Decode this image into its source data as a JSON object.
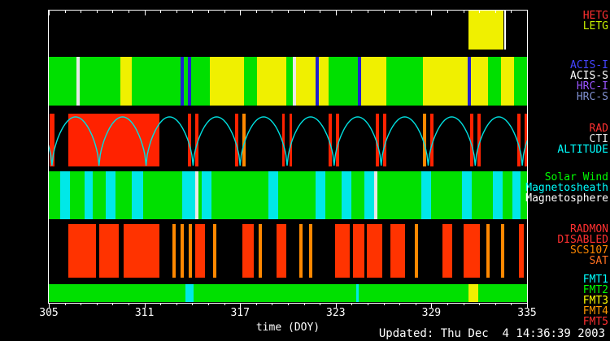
{
  "meta": {
    "updated_text": "Updated: Thu Dec  4 14:36:39 2003"
  },
  "chart_data": {
    "type": "timeline",
    "title": "",
    "x_axis": {
      "label": "time (DOY)",
      "min": 305,
      "max": 335,
      "major_ticks": [
        305,
        311,
        317,
        323,
        329,
        335
      ],
      "minor_step": 1
    },
    "frame_color": "#ffffff",
    "bands": [
      {
        "name": "gratings",
        "background": "#000000",
        "labels": [
          {
            "text": "HETG",
            "color": "#ff3030"
          },
          {
            "text": "LETG",
            "color": "#c8f000"
          }
        ],
        "segments": [
          {
            "start": 331.33,
            "end": 333.52,
            "color": "#f0f000",
            "state": "LETG"
          },
          {
            "start": 333.55,
            "end": 333.65,
            "color": "#ffffff",
            "state": "marker"
          }
        ]
      },
      {
        "name": "instruments",
        "background": "#00e000",
        "labels": [
          {
            "text": "ACIS-I",
            "color": "#4444ff"
          },
          {
            "text": "ACIS-S",
            "color": "#ffffff"
          },
          {
            "text": "HRC-I",
            "color": "#9955ff"
          },
          {
            "text": "HRC-S",
            "color": "#8090d0"
          }
        ],
        "segments": [
          {
            "start": 306.73,
            "end": 306.94,
            "color": "#e8e8e8"
          },
          {
            "start": 309.49,
            "end": 310.2,
            "color": "#f0f000"
          },
          {
            "start": 313.27,
            "end": 313.47,
            "color": "#2020d0"
          },
          {
            "start": 313.72,
            "end": 313.93,
            "color": "#2020d0"
          },
          {
            "start": 315.1,
            "end": 317.24,
            "color": "#f0f000"
          },
          {
            "start": 318.06,
            "end": 319.9,
            "color": "#f0f000"
          },
          {
            "start": 320.31,
            "end": 320.51,
            "color": "#e8e8e8"
          },
          {
            "start": 320.51,
            "end": 321.73,
            "color": "#f0f000"
          },
          {
            "start": 321.73,
            "end": 321.94,
            "color": "#2020d0"
          },
          {
            "start": 321.94,
            "end": 322.55,
            "color": "#f0f000"
          },
          {
            "start": 324.39,
            "end": 324.59,
            "color": "#2020d0"
          },
          {
            "start": 324.59,
            "end": 326.17,
            "color": "#f0f000"
          },
          {
            "start": 328.47,
            "end": 331.28,
            "color": "#f0f000"
          },
          {
            "start": 331.28,
            "end": 331.48,
            "color": "#2020d0"
          },
          {
            "start": 331.48,
            "end": 332.55,
            "color": "#f0f000"
          },
          {
            "start": 333.37,
            "end": 334.18,
            "color": "#f0f000"
          }
        ]
      },
      {
        "name": "radiation-altitude",
        "background": "#000000",
        "labels": [
          {
            "text": "RAD",
            "color": "#ff3030"
          },
          {
            "text": "CTI",
            "color": "#e8e8e8"
          },
          {
            "text": "ALTITUDE",
            "color": "#00ffff"
          }
        ],
        "altitude_curve": {
          "color": "#00e0e0",
          "first_perigee_doy": 305.2,
          "period_days": 2.95,
          "arcs": 12
        },
        "segments": [
          {
            "start": 305.05,
            "end": 305.35,
            "color": "#ff2200"
          },
          {
            "start": 306.22,
            "end": 311.94,
            "color": "#ff2200"
          },
          {
            "start": 313.72,
            "end": 313.92,
            "color": "#ff2200"
          },
          {
            "start": 314.18,
            "end": 314.38,
            "color": "#ff2200"
          },
          {
            "start": 316.67,
            "end": 316.87,
            "color": "#ff2200"
          },
          {
            "start": 317.13,
            "end": 317.33,
            "color": "#ff8800"
          },
          {
            "start": 319.62,
            "end": 319.82,
            "color": "#ff2200"
          },
          {
            "start": 320.08,
            "end": 320.28,
            "color": "#ff2200"
          },
          {
            "start": 322.57,
            "end": 322.77,
            "color": "#ff2200"
          },
          {
            "start": 323.03,
            "end": 323.23,
            "color": "#ff2200"
          },
          {
            "start": 325.52,
            "end": 325.72,
            "color": "#ff2200"
          },
          {
            "start": 325.98,
            "end": 326.18,
            "color": "#ff2200"
          },
          {
            "start": 328.47,
            "end": 328.67,
            "color": "#ff8800"
          },
          {
            "start": 328.93,
            "end": 329.13,
            "color": "#ff2200"
          },
          {
            "start": 331.42,
            "end": 331.62,
            "color": "#ff2200"
          },
          {
            "start": 331.88,
            "end": 332.08,
            "color": "#ff2200"
          },
          {
            "start": 334.37,
            "end": 334.57,
            "color": "#ff2200"
          },
          {
            "start": 334.83,
            "end": 335.0,
            "color": "#ff2200"
          }
        ]
      },
      {
        "name": "solar-wind-region",
        "background": "#00e000",
        "labels": [
          {
            "text": "Solar Wind",
            "color": "#00ff00"
          },
          {
            "text": "Magnetosheath",
            "color": "#00ffff"
          },
          {
            "text": "Magnetosphere",
            "color": "#ffffff"
          }
        ],
        "segments": [
          {
            "start": 305.71,
            "end": 306.33,
            "color": "#00e8e8"
          },
          {
            "start": 307.24,
            "end": 307.76,
            "color": "#00e8e8"
          },
          {
            "start": 308.57,
            "end": 309.18,
            "color": "#00e8e8"
          },
          {
            "start": 310.2,
            "end": 310.92,
            "color": "#00e8e8"
          },
          {
            "start": 313.37,
            "end": 314.18,
            "color": "#00e8e8"
          },
          {
            "start": 314.18,
            "end": 314.39,
            "color": "#e8e8e8"
          },
          {
            "start": 314.59,
            "end": 315.2,
            "color": "#00e8e8"
          },
          {
            "start": 318.78,
            "end": 319.39,
            "color": "#00e8e8"
          },
          {
            "start": 321.73,
            "end": 322.35,
            "color": "#00e8e8"
          },
          {
            "start": 323.37,
            "end": 323.98,
            "color": "#00e8e8"
          },
          {
            "start": 324.8,
            "end": 325.41,
            "color": "#00e8e8"
          },
          {
            "start": 325.41,
            "end": 325.61,
            "color": "#e8e8e8"
          },
          {
            "start": 328.37,
            "end": 328.98,
            "color": "#00e8e8"
          },
          {
            "start": 330.92,
            "end": 331.53,
            "color": "#00e8e8"
          },
          {
            "start": 332.86,
            "end": 333.47,
            "color": "#00e8e8"
          },
          {
            "start": 334.08,
            "end": 334.59,
            "color": "#00e8e8"
          }
        ]
      },
      {
        "name": "radmon-events",
        "background": "#000000",
        "labels": [
          {
            "text": "RADMON",
            "color": "#ff3030"
          },
          {
            "text": "DISABLED",
            "color": "#ff3030"
          },
          {
            "text": "SCS107",
            "color": "#ff8800"
          },
          {
            "text": "SAT",
            "color": "#ff7020"
          }
        ],
        "segments": [
          {
            "start": 306.22,
            "end": 307.96,
            "color": "#ff3300"
          },
          {
            "start": 308.16,
            "end": 309.39,
            "color": "#ff3300"
          },
          {
            "start": 309.69,
            "end": 311.94,
            "color": "#ff3300"
          },
          {
            "start": 312.76,
            "end": 312.96,
            "color": "#ff8800"
          },
          {
            "start": 313.27,
            "end": 313.47,
            "color": "#ff8800"
          },
          {
            "start": 313.78,
            "end": 313.98,
            "color": "#ff8800"
          },
          {
            "start": 314.18,
            "end": 314.8,
            "color": "#ff3300"
          },
          {
            "start": 315.31,
            "end": 315.51,
            "color": "#ff8800"
          },
          {
            "start": 317.14,
            "end": 317.86,
            "color": "#ff3300"
          },
          {
            "start": 318.16,
            "end": 318.37,
            "color": "#ff8800"
          },
          {
            "start": 319.29,
            "end": 319.9,
            "color": "#ff3300"
          },
          {
            "start": 320.71,
            "end": 320.92,
            "color": "#ff8800"
          },
          {
            "start": 321.33,
            "end": 321.53,
            "color": "#ff8800"
          },
          {
            "start": 322.96,
            "end": 323.88,
            "color": "#ff3300"
          },
          {
            "start": 324.08,
            "end": 324.8,
            "color": "#ff3300"
          },
          {
            "start": 324.95,
            "end": 325.92,
            "color": "#ff3300"
          },
          {
            "start": 326.43,
            "end": 327.35,
            "color": "#ff3300"
          },
          {
            "start": 327.96,
            "end": 328.16,
            "color": "#ff8800"
          },
          {
            "start": 329.69,
            "end": 330.31,
            "color": "#ff3300"
          },
          {
            "start": 331.02,
            "end": 332.04,
            "color": "#ff3300"
          },
          {
            "start": 332.45,
            "end": 332.65,
            "color": "#ff8800"
          },
          {
            "start": 333.37,
            "end": 333.57,
            "color": "#ff8800"
          },
          {
            "start": 334.49,
            "end": 334.8,
            "color": "#ff3300"
          }
        ]
      },
      {
        "name": "telemetry-format",
        "background": "#00e000",
        "labels": [
          {
            "text": "FMT1",
            "color": "#00ffff"
          },
          {
            "text": "FMT2",
            "color": "#00ff00"
          },
          {
            "text": "FMT3",
            "color": "#ffff00"
          },
          {
            "text": "FMT4",
            "color": "#ff9900"
          },
          {
            "text": "FMT5",
            "color": "#ff3030"
          }
        ],
        "segments": [
          {
            "start": 313.57,
            "end": 314.08,
            "color": "#00e8e8",
            "state": "FMT1"
          },
          {
            "start": 324.29,
            "end": 324.44,
            "color": "#00e8e8",
            "state": "FMT1"
          },
          {
            "start": 331.33,
            "end": 331.94,
            "color": "#f0f000",
            "state": "FMT3"
          }
        ]
      }
    ]
  }
}
